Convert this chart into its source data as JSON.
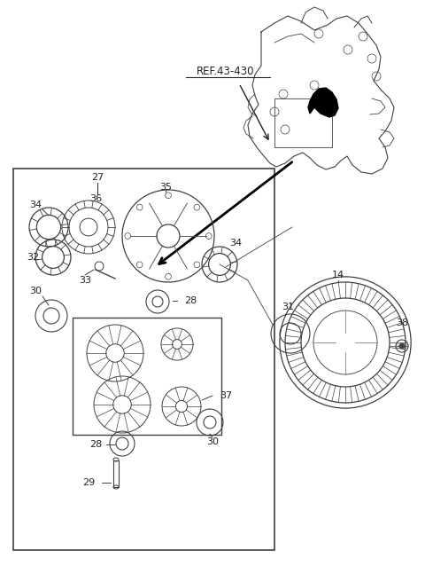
{
  "background_color": "#ffffff",
  "line_color": "#404040",
  "text_color": "#222222",
  "ref_label": "REF.43-430",
  "figsize": [
    4.8,
    6.56
  ],
  "dpi": 100
}
